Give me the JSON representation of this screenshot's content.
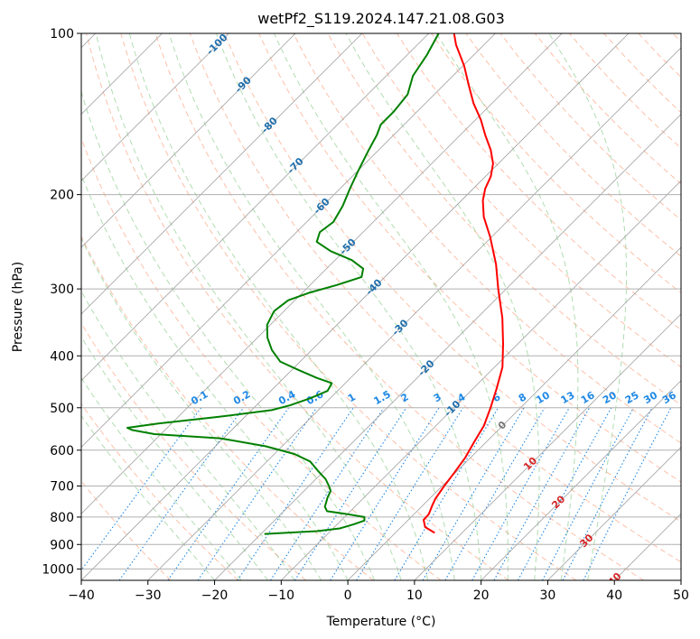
{
  "chart_data": {
    "type": "line",
    "subtype": "skew-t log-p diagram",
    "title": "wetPf2_S119.2024.147.21.08.G03",
    "xlabel": "Temperature (°C)",
    "ylabel": "Pressure (hPa)",
    "xlim": [
      -40,
      50
    ],
    "ylim": [
      1050,
      100
    ],
    "y_scale": "log",
    "x_ticks": [
      -40,
      -30,
      -20,
      -10,
      0,
      10,
      20,
      30,
      40,
      50
    ],
    "x_tick_labels": [
      "−40",
      "−30",
      "−20",
      "−10",
      "0",
      "10",
      "20",
      "30",
      "40",
      "50"
    ],
    "y_ticks": [
      100,
      200,
      300,
      400,
      500,
      600,
      700,
      800,
      900,
      1000
    ],
    "y_tick_labels": [
      "100",
      "200",
      "300",
      "400",
      "500",
      "600",
      "700",
      "800",
      "900",
      "1000"
    ],
    "grid": true,
    "series": [
      {
        "color": "#ff0000",
        "points": [
          [
            856,
            5.9
          ],
          [
            835,
            3.6
          ],
          [
            810,
            2.3
          ],
          [
            790,
            2.2
          ],
          [
            760,
            1.4
          ],
          [
            740,
            0.9
          ],
          [
            700,
            0.3
          ],
          [
            660,
            -0.2
          ],
          [
            620,
            -0.8
          ],
          [
            580,
            -1.8
          ],
          [
            540,
            -2.8
          ],
          [
            500,
            -4.5
          ],
          [
            460,
            -6.5
          ],
          [
            420,
            -8.8
          ],
          [
            380,
            -12.2
          ],
          [
            340,
            -16.2
          ],
          [
            300,
            -21.2
          ],
          [
            270,
            -25.2
          ],
          [
            240,
            -30.2
          ],
          [
            220,
            -34.2
          ],
          [
            205,
            -36.8
          ],
          [
            195,
            -38.2
          ],
          [
            185,
            -39.2
          ],
          [
            175,
            -40.8
          ],
          [
            165,
            -43.2
          ],
          [
            155,
            -46.2
          ],
          [
            145,
            -49.2
          ],
          [
            135,
            -52.8
          ],
          [
            125,
            -56.2
          ],
          [
            115,
            -59.8
          ],
          [
            105,
            -64.2
          ],
          [
            100,
            -66.2
          ]
        ]
      },
      {
        "color": "#008000",
        "points": [
          [
            860,
            -19.5
          ],
          [
            850,
            -12.0
          ],
          [
            840,
            -9.0
          ],
          [
            825,
            -7.5
          ],
          [
            812,
            -6.5
          ],
          [
            800,
            -7.0
          ],
          [
            790,
            -10.0
          ],
          [
            780,
            -13.5
          ],
          [
            765,
            -14.5
          ],
          [
            750,
            -15.0
          ],
          [
            735,
            -15.5
          ],
          [
            715,
            -16.0
          ],
          [
            700,
            -17.0
          ],
          [
            680,
            -18.5
          ],
          [
            655,
            -21.0
          ],
          [
            630,
            -23.5
          ],
          [
            610,
            -27.0
          ],
          [
            590,
            -32.5
          ],
          [
            570,
            -40.5
          ],
          [
            560,
            -51.0
          ],
          [
            550,
            -55.0
          ],
          [
            545,
            -56.0
          ],
          [
            535,
            -52.0
          ],
          [
            520,
            -44.0
          ],
          [
            505,
            -37.0
          ],
          [
            495,
            -35.0
          ],
          [
            480,
            -33.0
          ],
          [
            465,
            -31.5
          ],
          [
            450,
            -32.0
          ],
          [
            440,
            -35.0
          ],
          [
            425,
            -39.0
          ],
          [
            410,
            -43.0
          ],
          [
            390,
            -46.0
          ],
          [
            370,
            -48.5
          ],
          [
            350,
            -50.5
          ],
          [
            330,
            -51.5
          ],
          [
            315,
            -51.0
          ],
          [
            305,
            -49.0
          ],
          [
            295,
            -46.0
          ],
          [
            285,
            -43.5
          ],
          [
            275,
            -44.5
          ],
          [
            265,
            -47.5
          ],
          [
            255,
            -52.0
          ],
          [
            245,
            -55.5
          ],
          [
            235,
            -56.5
          ],
          [
            225,
            -56.0
          ],
          [
            210,
            -57.0
          ],
          [
            195,
            -58.5
          ],
          [
            180,
            -60.0
          ],
          [
            165,
            -61.5
          ],
          [
            155,
            -62.5
          ],
          [
            148,
            -63.5
          ],
          [
            140,
            -63.5
          ],
          [
            130,
            -64.0
          ],
          [
            120,
            -66.0
          ],
          [
            110,
            -67.0
          ],
          [
            100,
            -68.5
          ]
        ]
      }
    ],
    "isotherm_labels": [
      "-100",
      "-90",
      "-80",
      "-70",
      "-60",
      "-50",
      "-40",
      "-30",
      "-20",
      "-10",
      "0",
      "10",
      "20",
      "30",
      "40"
    ],
    "mixing_ratio_labels": [
      "0.1",
      "0.2",
      "0.4",
      "0.6",
      "1",
      "1.5",
      "2",
      "3",
      "4",
      "6",
      "8",
      "10",
      "13",
      "16",
      "20",
      "25",
      "30",
      "36"
    ],
    "colors": {
      "temperature": "#ff0000",
      "dewpoint": "#008000",
      "grid": "#b0b0b0",
      "isotherm": "#a0a0a0",
      "dry_adiabat": "#fc8d62",
      "moist_adiabat": "#66bb66",
      "mixing_ratio": "#1e88e5",
      "isotherm_label_cold": "#1f6fad",
      "isotherm_label_zero": "#777777",
      "isotherm_label_warm": "#d62728"
    }
  }
}
